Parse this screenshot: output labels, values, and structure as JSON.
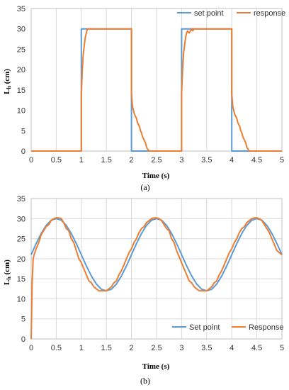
{
  "colors": {
    "set_point": "#5b9bd5",
    "response": "#ed7d31",
    "grid": "#d9d9d9"
  },
  "chart_data": [
    {
      "type": "line",
      "caption": "(a)",
      "xlabel": "Time (s)",
      "ylabel": "Lh (cm)",
      "ylabel_main": "L",
      "ylabel_sub": "h",
      "ylabel_unit": " (cm)",
      "xlim": [
        0,
        5
      ],
      "ylim": [
        0,
        35
      ],
      "xticks": [
        0,
        0.5,
        1,
        1.5,
        2,
        2.5,
        3,
        3.5,
        4,
        4.5,
        5
      ],
      "xtick_labels": [
        "0",
        "0.5",
        "1",
        "1.5",
        "2",
        "2.5",
        "3",
        "3.5",
        "4",
        "4.5",
        "5"
      ],
      "yticks": [
        0,
        5,
        10,
        15,
        20,
        25,
        30,
        35
      ],
      "ytick_labels": [
        "0",
        "5",
        "10",
        "15",
        "20",
        "25",
        "30",
        "35"
      ],
      "grid": "vertical",
      "legend_position": "top-right",
      "series": [
        {
          "name": "set point",
          "color": "#5b9bd5",
          "x": [
            0,
            1,
            1,
            2,
            2,
            3,
            3,
            4,
            4,
            5
          ],
          "y": [
            0,
            0,
            30,
            30,
            0,
            0,
            30,
            30,
            0,
            0
          ]
        },
        {
          "name": "response",
          "color": "#ed7d31",
          "x": [
            0,
            1.0,
            1.0,
            1.02,
            1.04,
            1.06,
            1.08,
            1.1,
            1.12,
            1.95,
            2.0,
            2.0,
            2.02,
            2.04,
            2.06,
            2.08,
            2.1,
            2.12,
            2.14,
            2.16,
            2.18,
            2.2,
            2.22,
            2.24,
            2.26,
            2.28,
            2.3,
            2.32,
            2.35,
            3.0,
            3.0,
            3.02,
            3.04,
            3.06,
            3.08,
            3.1,
            3.12,
            3.15,
            3.2,
            3.22,
            3.25,
            3.95,
            4.0,
            4.0,
            4.02,
            4.04,
            4.06,
            4.08,
            4.1,
            4.12,
            4.14,
            4.16,
            4.18,
            4.2,
            4.22,
            4.24,
            4.26,
            4.28,
            4.3,
            4.32,
            4.35,
            5
          ],
          "y": [
            0,
            0,
            14,
            20,
            24,
            26,
            28,
            29,
            30,
            30,
            30,
            14,
            11,
            10,
            9,
            8.5,
            8,
            7,
            6.5,
            6,
            5,
            4.5,
            3.5,
            3,
            2.5,
            2,
            1,
            0.5,
            0,
            0,
            14,
            20,
            24,
            26,
            28,
            29,
            29.5,
            29,
            30,
            29.5,
            30,
            30,
            30,
            14,
            11,
            10,
            9,
            8.5,
            8,
            7,
            6.5,
            6,
            5,
            4.5,
            3.5,
            3,
            2.5,
            2,
            1,
            0.5,
            0,
            0
          ]
        }
      ]
    },
    {
      "type": "line",
      "caption": "(b)",
      "xlabel": "Time (s)",
      "ylabel": "Lh (cm)",
      "ylabel_main": "L",
      "ylabel_sub": "h",
      "ylabel_unit": " (cm)",
      "xlim": [
        0,
        5
      ],
      "ylim": [
        0,
        35
      ],
      "xticks": [
        0,
        0.5,
        1,
        1.5,
        2,
        2.5,
        3,
        3.5,
        4,
        4.5,
        5
      ],
      "xtick_labels": [
        "0",
        "0.5",
        "1",
        "1.5",
        "2",
        "2.5",
        "3",
        "3.5",
        "4",
        "4.5",
        "5"
      ],
      "yticks": [
        0,
        5,
        10,
        15,
        20,
        25,
        30,
        35
      ],
      "ytick_labels": [
        "0",
        "5",
        "10",
        "15",
        "20",
        "25",
        "30",
        "35"
      ],
      "grid": "both",
      "legend_position": "bottom-right",
      "series": [
        {
          "name": "Set point",
          "color": "#5b9bd5",
          "x": [
            0,
            0.1,
            0.2,
            0.3,
            0.4,
            0.5,
            0.6,
            0.7,
            0.8,
            0.9,
            1.0,
            1.1,
            1.2,
            1.3,
            1.4,
            1.5,
            1.6,
            1.7,
            1.8,
            1.9,
            2.0,
            2.1,
            2.2,
            2.3,
            2.4,
            2.5,
            2.6,
            2.7,
            2.8,
            2.9,
            3.0,
            3.1,
            3.2,
            3.3,
            3.4,
            3.5,
            3.6,
            3.7,
            3.8,
            3.9,
            4.0,
            4.1,
            4.2,
            4.3,
            4.4,
            4.5,
            4.6,
            4.7,
            4.8,
            4.9,
            5.0
          ],
          "y": [
            21.0,
            23.8,
            26.3,
            28.3,
            29.6,
            30.0,
            29.6,
            28.3,
            26.3,
            23.8,
            21.0,
            18.2,
            15.7,
            13.7,
            12.4,
            12.0,
            12.4,
            13.7,
            15.7,
            18.2,
            21.0,
            23.8,
            26.3,
            28.3,
            29.6,
            30.0,
            29.6,
            28.3,
            26.3,
            23.8,
            21.0,
            18.2,
            15.7,
            13.7,
            12.4,
            12.0,
            12.4,
            13.7,
            15.7,
            18.2,
            21.0,
            23.8,
            26.3,
            28.3,
            29.6,
            30.0,
            29.6,
            28.3,
            26.3,
            23.8,
            21.0
          ]
        },
        {
          "name": "Response",
          "color": "#ed7d31",
          "x": [
            0,
            0.02,
            0.04,
            0.06,
            0.1,
            0.15,
            0.2,
            0.25,
            0.3,
            0.35,
            0.4,
            0.45,
            0.5,
            0.55,
            0.6,
            0.65,
            0.7,
            0.75,
            0.8,
            0.85,
            0.9,
            0.95,
            1.0,
            1.05,
            1.1,
            1.15,
            1.2,
            1.25,
            1.3,
            1.35,
            1.4,
            1.45,
            1.5,
            1.55,
            1.6,
            1.65,
            1.7,
            1.75,
            1.8,
            1.85,
            1.9,
            1.95,
            2.0,
            2.05,
            2.1,
            2.15,
            2.2,
            2.25,
            2.3,
            2.35,
            2.4,
            2.45,
            2.5,
            2.55,
            2.6,
            2.65,
            2.7,
            2.75,
            2.8,
            2.85,
            2.9,
            2.95,
            3.0,
            3.05,
            3.1,
            3.15,
            3.2,
            3.25,
            3.3,
            3.35,
            3.4,
            3.45,
            3.5,
            3.55,
            3.6,
            3.65,
            3.7,
            3.75,
            3.8,
            3.85,
            3.9,
            3.95,
            4.0,
            4.05,
            4.1,
            4.15,
            4.2,
            4.25,
            4.3,
            4.35,
            4.4,
            4.45,
            4.5,
            4.55,
            4.6,
            4.65,
            4.7,
            4.75,
            4.8,
            4.85,
            4.9,
            4.95,
            5.0
          ],
          "y": [
            0,
            14,
            20,
            21,
            22.5,
            24,
            26,
            27,
            28,
            28.5,
            29.5,
            30,
            30.2,
            30.2,
            30,
            29,
            27.5,
            27,
            25,
            24,
            22,
            20,
            19,
            17.5,
            16,
            14.5,
            14,
            13,
            12.5,
            12,
            12,
            12,
            12,
            12.5,
            13,
            14,
            14.5,
            16,
            17,
            18.5,
            20,
            21.5,
            22.5,
            24,
            25,
            26.5,
            27.5,
            28,
            29,
            29.5,
            30,
            30.2,
            30.2,
            30,
            29.5,
            28.5,
            27.5,
            27,
            25,
            24,
            22,
            20.5,
            19,
            17.5,
            16,
            14.5,
            14,
            13,
            12.5,
            12,
            12,
            12,
            12,
            12.5,
            13,
            14,
            14.5,
            16,
            17,
            18.5,
            20,
            21.5,
            22.5,
            24,
            25,
            26.5,
            27.5,
            28,
            29,
            29.5,
            30,
            30.2,
            30.2,
            30,
            29.5,
            28.5,
            27.5,
            26.5,
            25,
            23.5,
            22,
            21.5,
            21
          ]
        }
      ]
    }
  ]
}
